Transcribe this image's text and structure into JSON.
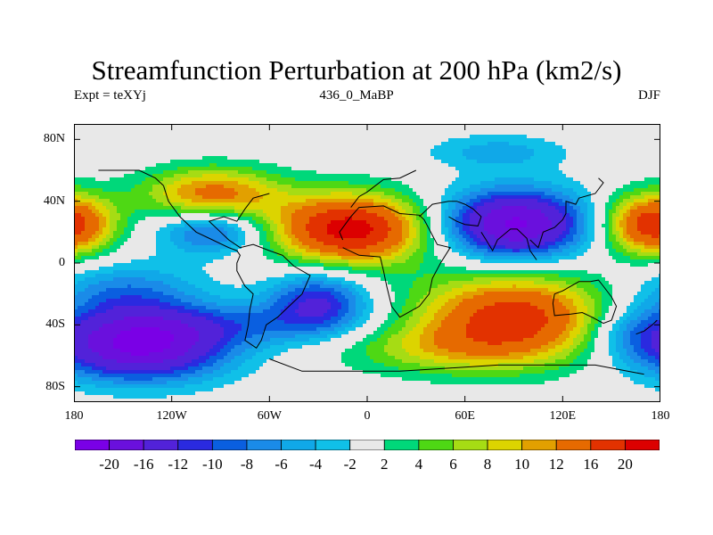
{
  "title": "Streamfunction Perturbation at 200 hPa (km2/s)",
  "subtitle_left": "Expt = teXYj",
  "subtitle_center": "436_0_MaBP",
  "subtitle_right": "DJF",
  "lat_labels": [
    "80N",
    "40N",
    "0",
    "40S",
    "80S"
  ],
  "lat_values": [
    80,
    40,
    0,
    -40,
    -80
  ],
  "lon_labels": [
    "180",
    "120W",
    "60W",
    "0",
    "60E",
    "120E",
    "180"
  ],
  "lon_values": [
    -180,
    -120,
    -60,
    0,
    60,
    120,
    180
  ],
  "colorbar": {
    "labels": [
      "-20",
      "-16",
      "-12",
      "-10",
      "-8",
      "-6",
      "-4",
      "-2",
      "2",
      "4",
      "6",
      "8",
      "10",
      "12",
      "16",
      "20"
    ],
    "levels": [
      -20,
      -16,
      -12,
      -10,
      -8,
      -6,
      -4,
      -2,
      2,
      4,
      6,
      8,
      10,
      12,
      16,
      20
    ],
    "colors": [
      "#7a00e6",
      "#6a10dd",
      "#5222d9",
      "#2a2ae0",
      "#0a5fe0",
      "#1a8be8",
      "#10a8e8",
      "#10c0e8",
      "#e8e8e8",
      "#00d87a",
      "#4ed814",
      "#a6dc14",
      "#dcd400",
      "#e2a000",
      "#e66a00",
      "#e23200",
      "#dc0000"
    ]
  },
  "field_centers": [
    {
      "lon": -95,
      "lat": 45,
      "value": 13,
      "sx": 30,
      "sy": 12
    },
    {
      "lon": -10,
      "lat": 22,
      "value": 22,
      "sx": 34,
      "sy": 16
    },
    {
      "lon": 90,
      "lat": -35,
      "value": 18,
      "sx": 42,
      "sy": 20
    },
    {
      "lon": 40,
      "lat": -55,
      "value": 6,
      "sx": 45,
      "sy": 12
    },
    {
      "lon": 170,
      "lat": 25,
      "value": 10,
      "sx": 20,
      "sy": 14
    },
    {
      "lon": -180,
      "lat": 25,
      "value": 10,
      "sx": 20,
      "sy": 14
    },
    {
      "lon": -140,
      "lat": -55,
      "value": -20,
      "sx": 38,
      "sy": 15
    },
    {
      "lon": 90,
      "lat": 25,
      "value": -21,
      "sx": 32,
      "sy": 16
    },
    {
      "lon": -95,
      "lat": 20,
      "value": -10,
      "sx": 22,
      "sy": 10
    },
    {
      "lon": -30,
      "lat": -25,
      "value": -12,
      "sx": 22,
      "sy": 14
    },
    {
      "lon": -150,
      "lat": -20,
      "value": -8,
      "sx": 35,
      "sy": 14
    },
    {
      "lon": 80,
      "lat": 72,
      "value": -5,
      "sx": 30,
      "sy": 8
    },
    {
      "lon": 160,
      "lat": -45,
      "value": -5,
      "sx": 18,
      "sy": 12
    },
    {
      "lon": -90,
      "lat": -40,
      "value": -6,
      "sx": 60,
      "sy": 10
    }
  ]
}
